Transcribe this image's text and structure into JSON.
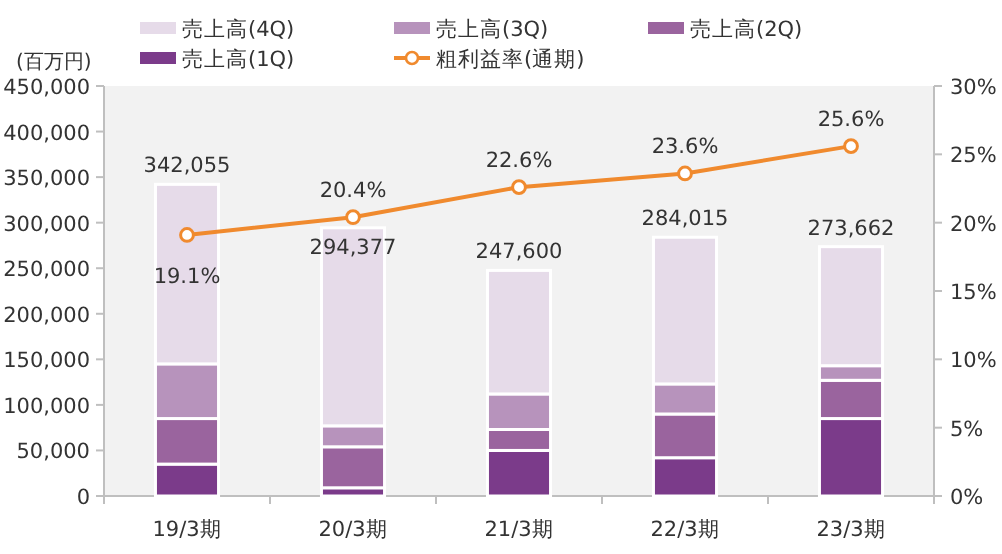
{
  "chart_data": {
    "type": "bar",
    "stacked": true,
    "ylabel": "(百万円)",
    "categories": [
      "19/3期",
      "20/3期",
      "21/3期",
      "22/3期",
      "23/3期"
    ],
    "series": [
      {
        "name": "売上高(1Q)",
        "color": "#7b3b8a",
        "values": [
          35000,
          9000,
          50000,
          42000,
          85000
        ]
      },
      {
        "name": "売上高(2Q)",
        "color": "#9a649e",
        "values": [
          50000,
          45000,
          23000,
          48000,
          42000
        ]
      },
      {
        "name": "売上高(3Q)",
        "color": "#b793bc",
        "values": [
          60000,
          23000,
          39000,
          33000,
          16000
        ]
      },
      {
        "name": "売上高(4Q)",
        "color": "#e6dbe9",
        "values": [
          197055,
          217377,
          135600,
          161015,
          130662
        ]
      },
      {
        "name": "粗利益率(通期)",
        "type": "line",
        "axis": "y2",
        "marker": "circle",
        "color": "#f08a2e",
        "values": [
          19.1,
          20.4,
          22.6,
          23.6,
          25.6
        ],
        "value_labels": [
          "19.1%",
          "20.4%",
          "22.6%",
          "23.6%",
          "25.6%"
        ]
      }
    ],
    "totals": [
      "342,055",
      "294,377",
      "247,600",
      "284,015",
      "273,662"
    ],
    "ylim": [
      0,
      450000
    ],
    "yticks": [
      {
        "value": 0,
        "label": "0"
      },
      {
        "value": 50000,
        "label": "50,000"
      },
      {
        "value": 100000,
        "label": "100,000"
      },
      {
        "value": 150000,
        "label": "150,000"
      },
      {
        "value": 200000,
        "label": "200,000"
      },
      {
        "value": 250000,
        "label": "250,000"
      },
      {
        "value": 300000,
        "label": "300,000"
      },
      {
        "value": 350000,
        "label": "350,000"
      },
      {
        "value": 400000,
        "label": "400,000"
      },
      {
        "value": 450000,
        "label": "450,000"
      }
    ],
    "y2lim": [
      0,
      30
    ],
    "y2ticks": [
      {
        "value": 0,
        "label": "0%"
      },
      {
        "value": 5,
        "label": "5%"
      },
      {
        "value": 10,
        "label": "10%"
      },
      {
        "value": 15,
        "label": "15%"
      },
      {
        "value": 20,
        "label": "20%"
      },
      {
        "value": 25,
        "label": "25%"
      },
      {
        "value": 30,
        "label": "30%"
      }
    ],
    "legend": "top",
    "grid": false
  }
}
